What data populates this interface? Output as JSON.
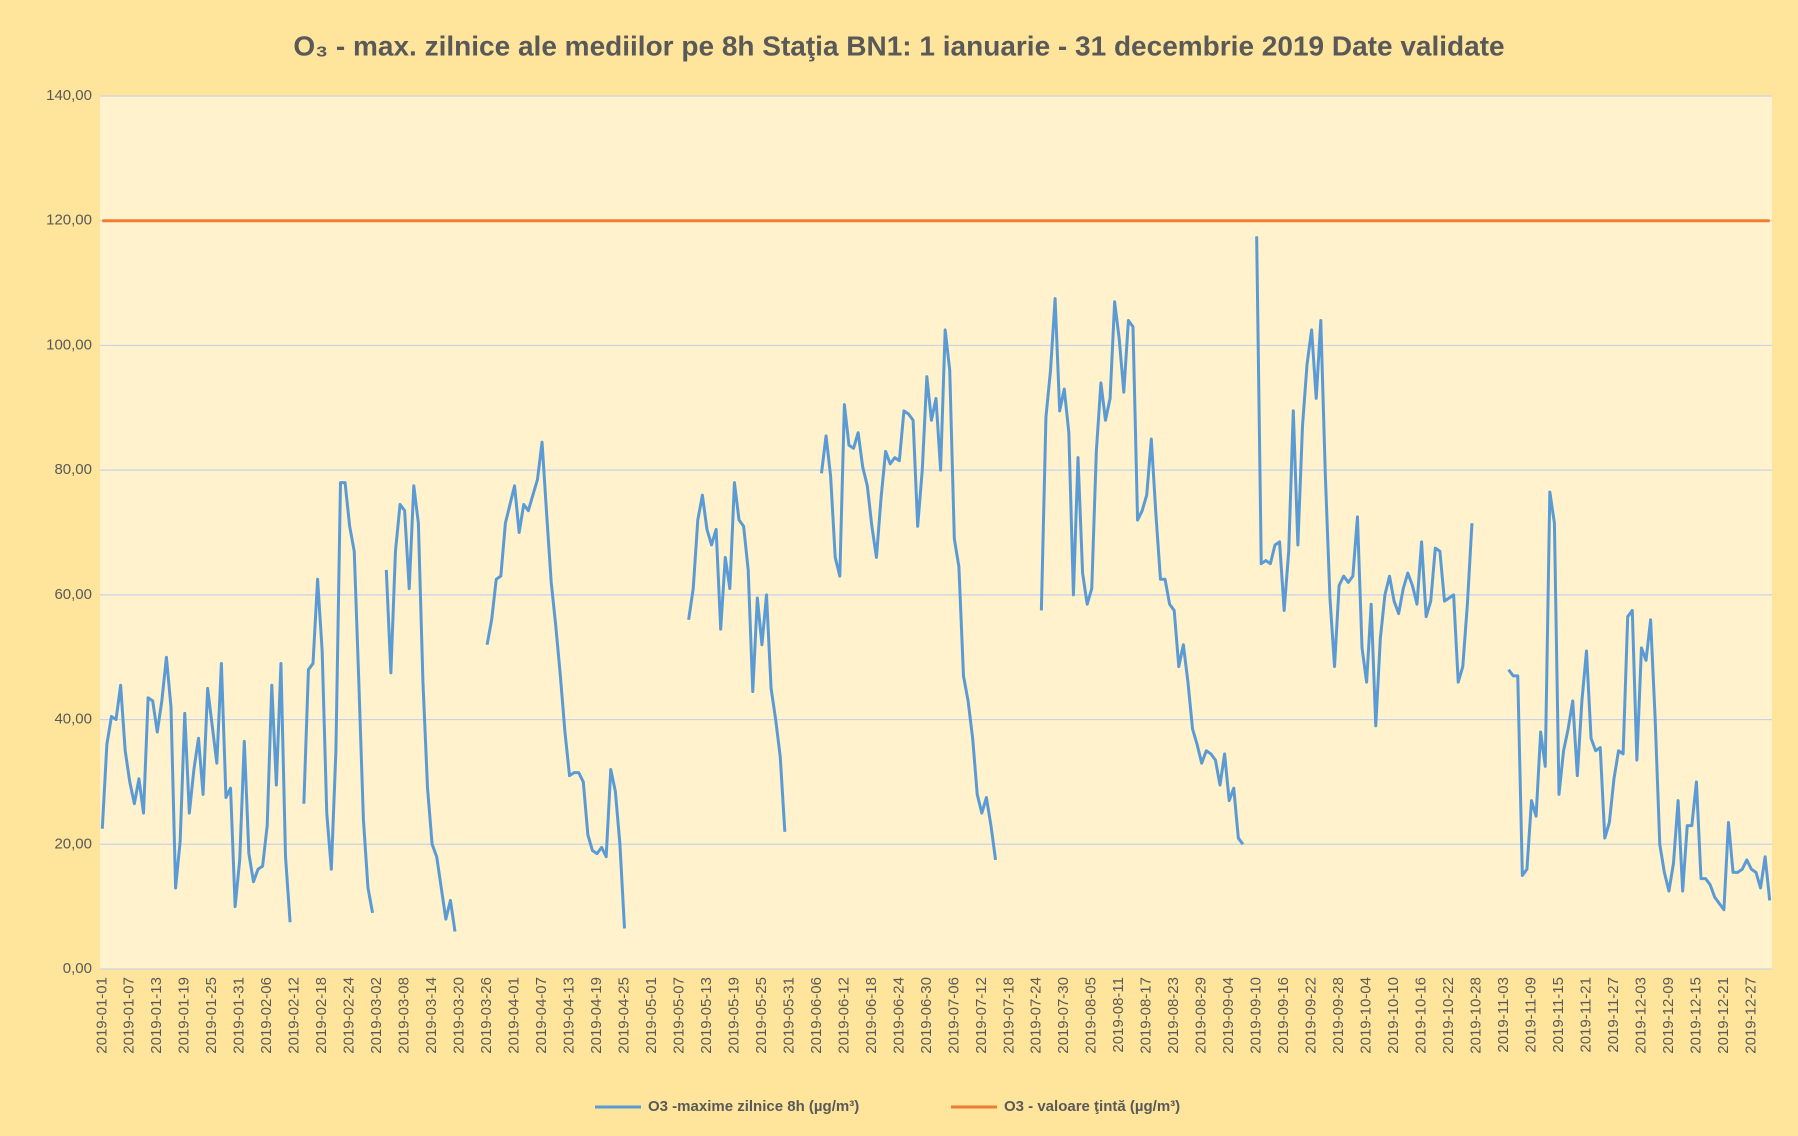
{
  "chart_data": {
    "type": "line",
    "title": "O₃ - max. zilnice ale mediilor pe 8h Staţia BN1: 1 ianuarie - 31 decembrie 2019 Date validate",
    "x": [
      "2019-01-01",
      null,
      null,
      null,
      null,
      null,
      "2019-01-07",
      null,
      null,
      null,
      null,
      null,
      "2019-01-13",
      null,
      null,
      null,
      null,
      null,
      "2019-01-19",
      null,
      null,
      null,
      null,
      null,
      "2019-01-25",
      null,
      null,
      null,
      null,
      null,
      "2019-01-31",
      null,
      null,
      null,
      null,
      null,
      "2019-02-06",
      null,
      null,
      null,
      null,
      null,
      "2019-02-12",
      null,
      null,
      null,
      null,
      null,
      "2019-02-18",
      null,
      null,
      null,
      null,
      null,
      "2019-02-24",
      null,
      null,
      null,
      null,
      null,
      "2019-03-02",
      null,
      null,
      null,
      null,
      null,
      "2019-03-08",
      null,
      null,
      null,
      null,
      null,
      "2019-03-14",
      null,
      null,
      null,
      null,
      null,
      "2019-03-20",
      null,
      null,
      null,
      null,
      null,
      "2019-03-26",
      null,
      null,
      null,
      null,
      null,
      "2019-04-01",
      null,
      null,
      null,
      null,
      null,
      "2019-04-07",
      null,
      null,
      null,
      null,
      null,
      "2019-04-13",
      null,
      null,
      null,
      null,
      null,
      "2019-04-19",
      null,
      null,
      null,
      null,
      null,
      "2019-04-25",
      null,
      null,
      null,
      null,
      null,
      "2019-05-01",
      null,
      null,
      null,
      null,
      null,
      "2019-05-07",
      null,
      null,
      null,
      null,
      null,
      "2019-05-13",
      null,
      null,
      null,
      null,
      null,
      "2019-05-19",
      null,
      null,
      null,
      null,
      null,
      "2019-05-25",
      null,
      null,
      null,
      null,
      null,
      "2019-05-31",
      null,
      null,
      null,
      null,
      null,
      "2019-06-06",
      null,
      null,
      null,
      null,
      null,
      "2019-06-12",
      null,
      null,
      null,
      null,
      null,
      "2019-06-18",
      null,
      null,
      null,
      null,
      null,
      "2019-06-24",
      null,
      null,
      null,
      null,
      null,
      "2019-06-30",
      null,
      null,
      null,
      null,
      null,
      "2019-07-06",
      null,
      null,
      null,
      null,
      null,
      "2019-07-12",
      null,
      null,
      null,
      null,
      null,
      "2019-07-18",
      null,
      null,
      null,
      null,
      null,
      "2019-07-24",
      null,
      null,
      null,
      null,
      null,
      "2019-07-30",
      null,
      null,
      null,
      null,
      null,
      "2019-08-05",
      null,
      null,
      null,
      null,
      null,
      "2019-08-11",
      null,
      null,
      null,
      null,
      null,
      "2019-08-17",
      null,
      null,
      null,
      null,
      null,
      "2019-08-23",
      null,
      null,
      null,
      null,
      null,
      "2019-08-29",
      null,
      null,
      null,
      null,
      null,
      "2019-09-04",
      null,
      null,
      null,
      null,
      null,
      "2019-09-10",
      null,
      null,
      null,
      null,
      null,
      "2019-09-16",
      null,
      null,
      null,
      null,
      null,
      "2019-09-22",
      null,
      null,
      null,
      null,
      null,
      "2019-09-28",
      null,
      null,
      null,
      null,
      null,
      "2019-10-04",
      null,
      null,
      null,
      null,
      null,
      "2019-10-10",
      null,
      null,
      null,
      null,
      null,
      "2019-10-16",
      null,
      null,
      null,
      null,
      null,
      "2019-10-22",
      null,
      null,
      null,
      null,
      null,
      "2019-10-28",
      null,
      null,
      null,
      null,
      null,
      "2019-11-03",
      null,
      null,
      null,
      null,
      null,
      "2019-11-09",
      null,
      null,
      null,
      null,
      null,
      "2019-11-15",
      null,
      null,
      null,
      null,
      null,
      "2019-11-21",
      null,
      null,
      null,
      null,
      null,
      "2019-11-27",
      null,
      null,
      null,
      null,
      null,
      "2019-12-03",
      null,
      null,
      null,
      null,
      null,
      "2019-12-09",
      null,
      null,
      null,
      null,
      null,
      "2019-12-15",
      null,
      null,
      null,
      null,
      null,
      "2019-12-21",
      null,
      null,
      null,
      null,
      null,
      "2019-12-27",
      null,
      null,
      null,
      null
    ],
    "series": [
      {
        "name": "O3 -maxime zilnice 8h  (µg/m³)",
        "color": "#5b9bd5",
        "values": [
          22.5,
          36,
          40.5,
          40,
          45.5,
          35,
          30,
          26.5,
          30.5,
          25,
          43.5,
          43,
          38,
          43,
          50,
          42,
          13,
          20.5,
          41,
          25,
          32,
          37,
          28,
          45,
          39,
          33,
          49,
          27.5,
          29,
          10,
          17.5,
          36.5,
          18.5,
          14,
          16,
          16.5,
          23,
          45.5,
          29.5,
          49,
          18,
          7.5,
          null,
          null,
          26.5,
          48,
          49,
          62.5,
          51,
          25,
          16,
          35,
          78,
          78,
          71,
          67,
          46,
          24,
          13,
          9,
          null,
          null,
          64,
          47.5,
          67,
          74.5,
          73.5,
          61,
          77.5,
          71.5,
          46,
          29,
          20,
          18,
          13,
          8,
          11,
          6,
          null,
          null,
          null,
          null,
          null,
          null,
          52,
          56,
          62.5,
          63,
          71.5,
          74.5,
          77.5,
          70,
          74.5,
          73.5,
          76,
          78.5,
          84.5,
          73,
          62,
          55,
          47,
          38,
          31,
          31.5,
          31.5,
          30,
          21.5,
          19,
          18.5,
          19.5,
          18,
          32,
          28.5,
          20,
          6.5,
          null,
          null,
          null,
          null,
          null,
          null,
          null,
          null,
          null,
          null,
          null,
          null,
          null,
          56,
          61,
          72,
          76,
          70.5,
          68,
          70.5,
          54.5,
          66,
          61,
          78,
          72,
          71,
          64,
          44.5,
          59.5,
          52,
          60,
          45,
          40,
          34,
          22,
          null,
          null,
          null,
          null,
          null,
          null,
          null,
          79.5,
          85.5,
          79,
          66,
          63,
          90.5,
          84,
          83.5,
          86,
          80.5,
          77.5,
          71,
          66,
          75.5,
          83,
          81,
          82,
          81.5,
          89.5,
          89,
          88,
          71,
          80,
          95,
          88,
          91.5,
          80,
          102.5,
          96,
          69,
          64.5,
          47,
          43,
          37,
          28,
          25,
          27.5,
          23,
          17.5,
          null,
          null,
          null,
          null,
          null,
          null,
          null,
          null,
          null,
          57.5,
          88.5,
          96,
          107.5,
          89.5,
          93,
          86,
          60,
          82,
          63.5,
          58.5,
          61,
          83,
          94,
          88,
          91.5,
          107,
          101,
          92.5,
          104,
          103,
          72,
          73.5,
          76,
          85,
          73,
          62.5,
          62.5,
          58.5,
          57.5,
          48.5,
          52,
          46,
          38.5,
          36,
          33,
          35,
          34.5,
          33.5,
          29.5,
          34.5,
          27,
          29,
          21,
          20,
          null,
          null,
          117.5,
          65,
          65.5,
          65,
          68,
          68.5,
          57.5,
          67,
          89.5,
          68,
          87,
          97,
          102.5,
          91.5,
          104,
          79,
          59.5,
          48.5,
          61.5,
          63,
          62,
          63,
          72.5,
          51.5,
          46,
          58.5,
          39,
          53,
          60,
          63,
          59,
          57,
          61,
          63.5,
          61.5,
          58.5,
          68.5,
          56.5,
          59,
          67.5,
          67,
          59,
          59.5,
          60,
          46,
          48.5,
          58.5,
          71.5,
          null,
          null,
          null,
          null,
          null,
          null,
          null,
          48,
          47,
          47,
          15,
          16,
          27,
          24.5,
          38,
          32.5,
          76.5,
          71.5,
          28,
          35,
          38.5,
          43,
          31,
          43,
          51,
          37,
          35,
          35.5,
          21,
          23.5,
          30.5,
          35,
          34.5,
          56.5,
          57.5,
          33.5,
          51.5,
          49.5,
          56,
          40,
          20,
          15.5,
          12.5,
          17,
          27,
          12.5,
          23,
          23,
          30,
          14.5,
          14.5,
          13.5,
          11.5,
          10.5,
          9.5,
          23.5,
          15.5,
          15.5,
          16,
          17.5,
          16,
          15.5,
          13,
          18,
          11
        ]
      },
      {
        "name": "O3 - valoare ţintă  (µg/m³)",
        "color": "#ed7d31",
        "values": [
          120,
          120,
          120,
          120,
          120,
          120,
          120,
          120,
          120,
          120,
          120,
          120,
          120,
          120,
          120,
          120,
          120,
          120,
          120,
          120,
          120,
          120,
          120,
          120,
          120,
          120,
          120,
          120,
          120,
          120,
          120,
          120,
          120,
          120,
          120,
          120,
          120,
          120,
          120,
          120,
          120,
          120,
          120,
          120,
          120,
          120,
          120,
          120,
          120,
          120,
          120,
          120,
          120,
          120,
          120,
          120,
          120,
          120,
          120,
          120,
          120,
          120,
          120,
          120,
          120,
          120,
          120,
          120,
          120,
          120,
          120,
          120,
          120,
          120,
          120,
          120,
          120,
          120,
          120,
          120,
          120,
          120,
          120,
          120,
          120,
          120,
          120,
          120,
          120,
          120,
          120,
          120,
          120,
          120,
          120,
          120,
          120,
          120,
          120,
          120,
          120,
          120,
          120,
          120,
          120,
          120,
          120,
          120,
          120,
          120,
          120,
          120,
          120,
          120,
          120,
          120,
          120,
          120,
          120,
          120,
          120,
          120,
          120,
          120,
          120,
          120,
          120,
          120,
          120,
          120,
          120,
          120,
          120,
          120,
          120,
          120,
          120,
          120,
          120,
          120,
          120,
          120,
          120,
          120,
          120,
          120,
          120,
          120,
          120,
          120,
          120,
          120,
          120,
          120,
          120,
          120,
          120,
          120,
          120,
          120,
          120,
          120,
          120,
          120,
          120,
          120,
          120,
          120,
          120,
          120,
          120,
          120,
          120,
          120,
          120,
          120,
          120,
          120,
          120,
          120,
          120,
          120,
          120,
          120,
          120,
          120,
          120,
          120,
          120,
          120,
          120,
          120,
          120,
          120,
          120,
          120,
          120,
          120,
          120,
          120,
          120,
          120,
          120,
          120,
          120,
          120,
          120,
          120,
          120,
          120,
          120,
          120,
          120,
          120,
          120,
          120,
          120,
          120,
          120,
          120,
          120,
          120,
          120,
          120,
          120,
          120,
          120,
          120,
          120,
          120,
          120,
          120,
          120,
          120,
          120,
          120,
          120,
          120,
          120,
          120,
          120,
          120,
          120,
          120,
          120,
          120,
          120,
          120,
          120,
          120,
          120,
          120,
          120,
          120,
          120,
          120,
          120,
          120,
          120,
          120,
          120,
          120,
          120,
          120,
          120,
          120,
          120,
          120,
          120,
          120,
          120,
          120,
          120,
          120,
          120,
          120,
          120,
          120,
          120,
          120,
          120,
          120,
          120,
          120,
          120,
          120,
          120,
          120,
          120,
          120,
          120,
          120,
          120,
          120,
          120,
          120,
          120,
          120,
          120,
          120,
          120,
          120,
          120,
          120,
          120,
          120,
          120,
          120,
          120,
          120,
          120,
          120,
          120,
          120,
          120,
          120,
          120,
          120,
          120,
          120,
          120,
          120,
          120,
          120,
          120,
          120,
          120,
          120,
          120,
          120,
          120,
          120,
          120,
          120,
          120,
          120,
          120,
          120,
          120,
          120,
          120,
          120,
          120,
          120,
          120,
          120,
          120,
          120,
          120,
          120,
          120,
          120,
          120,
          120,
          120,
          120,
          120,
          120,
          120,
          120,
          120,
          120,
          120,
          120,
          120
        ]
      }
    ],
    "ylim": [
      0,
      140
    ],
    "yticks": [
      {
        "value": 0,
        "label": "0,00"
      },
      {
        "value": 20,
        "label": "20,00"
      },
      {
        "value": 40,
        "label": "40,00"
      },
      {
        "value": 60,
        "label": "60,00"
      },
      {
        "value": 80,
        "label": "80,00"
      },
      {
        "value": 100,
        "label": "100,00"
      },
      {
        "value": 120,
        "label": "120,00"
      },
      {
        "value": 140,
        "label": "140,00"
      }
    ],
    "grid": true,
    "legend": "bottom"
  }
}
